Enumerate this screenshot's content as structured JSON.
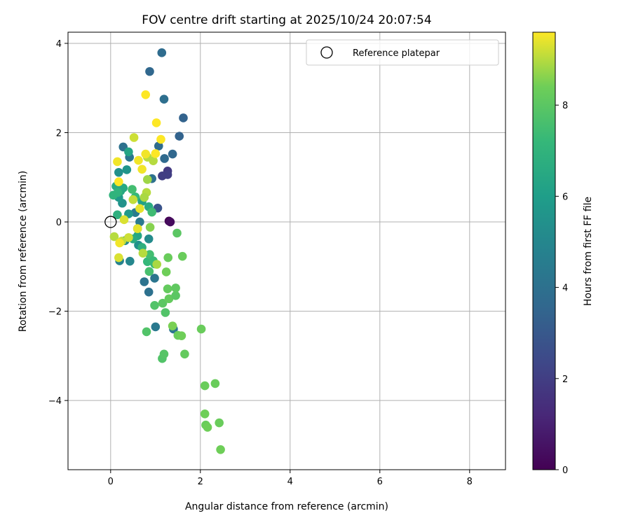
{
  "chart_data": {
    "type": "scatter",
    "title": "FOV centre drift starting at 2025/10/24 20:07:54",
    "xlabel": "Angular distance from reference (arcmin)",
    "ylabel": "Rotation from reference (arcmin)",
    "xlim": [
      -0.95,
      8.8
    ],
    "ylim": [
      -5.55,
      4.25
    ],
    "xticks": [
      0,
      2,
      4,
      6,
      8
    ],
    "yticks": [
      -4,
      -2,
      0,
      2,
      4
    ],
    "xtick_labels": [
      "0",
      "2",
      "4",
      "6",
      "8"
    ],
    "ytick_labels": [
      "−4",
      "−2",
      "0",
      "2",
      "4"
    ],
    "grid": true,
    "legend": {
      "label": "Reference platepar",
      "location": "top-right"
    },
    "reference_point": {
      "x": 0,
      "y": 0
    },
    "colorbar": {
      "label": "Hours from first FF file",
      "range": [
        0,
        9.6
      ],
      "ticks": [
        0,
        2,
        4,
        6,
        8
      ],
      "tick_labels": [
        "0",
        "2",
        "4",
        "6",
        "8"
      ],
      "colormap": "viridis"
    },
    "points": [
      [
        1.3,
        0.02,
        0.0
      ],
      [
        1.33,
        0.0,
        0.3
      ],
      [
        1.27,
        1.14,
        1.8
      ],
      [
        1.27,
        1.06,
        2.0
      ],
      [
        1.15,
        1.03,
        2.0
      ],
      [
        1.05,
        0.31,
        2.8
      ],
      [
        1.14,
        3.79,
        3.8
      ],
      [
        0.87,
        3.37,
        3.6
      ],
      [
        1.19,
        2.75,
        3.9
      ],
      [
        1.62,
        2.33,
        3.4
      ],
      [
        1.53,
        1.92,
        3.4
      ],
      [
        1.38,
        1.52,
        3.6
      ],
      [
        1.07,
        1.7,
        3.8
      ],
      [
        1.2,
        1.42,
        3.7
      ],
      [
        0.28,
        1.68,
        4.0
      ],
      [
        0.42,
        1.45,
        4.2
      ],
      [
        0.92,
        0.97,
        4.0
      ],
      [
        0.85,
        -1.57,
        4.0
      ],
      [
        0.75,
        -1.34,
        4.1
      ],
      [
        0.98,
        -1.26,
        4.2
      ],
      [
        1.4,
        -2.4,
        4.2
      ],
      [
        1.0,
        -2.35,
        4.4
      ],
      [
        0.55,
        0.21,
        4.5
      ],
      [
        0.65,
        0.0,
        4.4
      ],
      [
        0.6,
        -0.15,
        4.6
      ],
      [
        0.2,
        -0.87,
        4.8
      ],
      [
        0.43,
        -0.88,
        5.0
      ],
      [
        0.32,
        -0.42,
        5.1
      ],
      [
        0.85,
        -0.38,
        5.2
      ],
      [
        0.62,
        -0.52,
        5.4
      ],
      [
        0.18,
        1.11,
        5.4
      ],
      [
        0.26,
        0.42,
        5.5
      ],
      [
        0.36,
        1.17,
        5.6
      ],
      [
        0.4,
        0.18,
        5.8
      ],
      [
        0.18,
        0.55,
        5.8
      ],
      [
        0.7,
        0.46,
        6.2
      ],
      [
        0.4,
        1.57,
        6.3
      ],
      [
        0.6,
        -0.31,
        6.4
      ],
      [
        0.28,
        0.76,
        6.5
      ],
      [
        0.85,
        0.34,
        6.6
      ],
      [
        0.5,
        -0.38,
        6.6
      ],
      [
        0.7,
        -0.57,
        6.8
      ],
      [
        0.12,
        0.8,
        6.6
      ],
      [
        0.15,
        0.16,
        6.8
      ],
      [
        0.22,
        0.69,
        6.5
      ],
      [
        0.06,
        0.6,
        7.0
      ],
      [
        0.16,
        0.66,
        7.0
      ],
      [
        0.55,
        0.56,
        7.2
      ],
      [
        0.48,
        0.73,
        7.5
      ],
      [
        0.92,
        0.22,
        7.4
      ],
      [
        0.98,
        -0.94,
        7.2
      ],
      [
        0.82,
        -0.89,
        7.2
      ],
      [
        0.87,
        -0.73,
        7.5
      ],
      [
        0.95,
        -0.87,
        7.3
      ],
      [
        0.86,
        -1.11,
        7.6
      ],
      [
        0.8,
        -2.46,
        7.8
      ],
      [
        1.15,
        -3.06,
        7.8
      ],
      [
        1.19,
        -2.96,
        7.9
      ],
      [
        1.22,
        -2.03,
        7.8
      ],
      [
        0.98,
        -1.87,
        7.8
      ],
      [
        1.16,
        -1.82,
        8.0
      ],
      [
        1.27,
        -1.5,
        8.2
      ],
      [
        1.3,
        -1.72,
        8.2
      ],
      [
        1.45,
        -1.65,
        8.0
      ],
      [
        1.45,
        -1.48,
        8.1
      ],
      [
        1.5,
        -2.54,
        8.3
      ],
      [
        1.58,
        -2.55,
        8.4
      ],
      [
        1.65,
        -2.96,
        8.2
      ],
      [
        1.38,
        -2.33,
        8.5
      ],
      [
        1.24,
        -1.12,
        8.4
      ],
      [
        1.28,
        -0.8,
        8.3
      ],
      [
        1.48,
        -0.25,
        8.0
      ],
      [
        1.6,
        -0.77,
        8.3
      ],
      [
        2.02,
        -2.4,
        8.3
      ],
      [
        2.1,
        -3.67,
        8.3
      ],
      [
        2.33,
        -3.62,
        8.3
      ],
      [
        2.1,
        -4.3,
        8.4
      ],
      [
        2.12,
        -4.55,
        8.3
      ],
      [
        2.16,
        -4.6,
        8.4
      ],
      [
        2.42,
        -4.5,
        8.3
      ],
      [
        2.45,
        -5.1,
        8.4
      ],
      [
        0.88,
        -0.12,
        8.6
      ],
      [
        0.82,
        0.95,
        8.8
      ],
      [
        0.8,
        0.66,
        9.0
      ],
      [
        0.75,
        0.55,
        8.9
      ],
      [
        0.72,
        -0.7,
        9.0
      ],
      [
        1.03,
        -0.95,
        8.9
      ],
      [
        0.95,
        1.37,
        9.0
      ],
      [
        0.82,
        1.45,
        9.0
      ],
      [
        0.52,
        1.89,
        9.2
      ],
      [
        0.5,
        0.5,
        9.1
      ],
      [
        0.4,
        -0.35,
        9.2
      ],
      [
        0.25,
        -0.43,
        9.1
      ],
      [
        0.08,
        -0.33,
        9.0
      ],
      [
        0.18,
        -0.8,
        9.3
      ],
      [
        0.6,
        -0.15,
        9.4
      ],
      [
        0.3,
        0.05,
        9.3
      ],
      [
        0.65,
        0.3,
        9.4
      ],
      [
        0.7,
        1.18,
        9.5
      ],
      [
        0.62,
        1.38,
        9.5
      ],
      [
        0.78,
        1.52,
        9.5
      ],
      [
        1.0,
        1.53,
        9.6
      ],
      [
        1.12,
        1.85,
        9.6
      ],
      [
        1.02,
        2.22,
        9.6
      ],
      [
        0.78,
        2.85,
        9.6
      ],
      [
        0.15,
        1.35,
        9.5
      ],
      [
        0.18,
        0.9,
        9.6
      ],
      [
        0.2,
        -0.47,
        9.5
      ]
    ]
  }
}
